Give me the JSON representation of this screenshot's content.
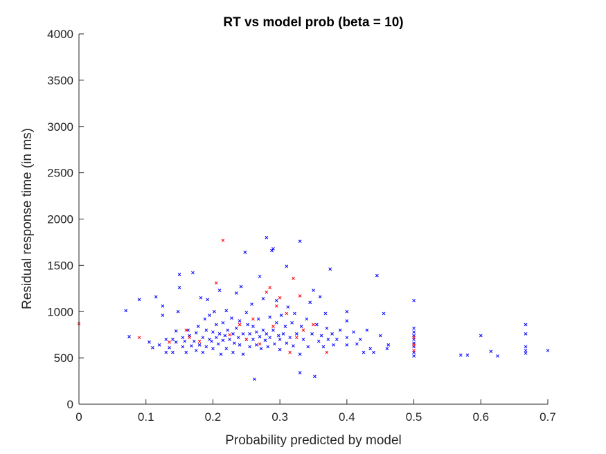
{
  "chart_data": {
    "type": "scatter",
    "title": "RT vs model prob (beta = 10)",
    "xlabel": "Probability predicted by model",
    "ylabel": "Residual response time (in ms)",
    "xlim": [
      0,
      0.7
    ],
    "ylim": [
      0,
      4000
    ],
    "xticks": [
      "0",
      "0.1",
      "0.2",
      "0.3",
      "0.4",
      "0.5",
      "0.6",
      "0.7"
    ],
    "yticks": [
      "0",
      "500",
      "1000",
      "1500",
      "2000",
      "2500",
      "3000",
      "3500",
      "4000"
    ],
    "grid": false,
    "marker": "x",
    "series": [
      {
        "color": "#0000ff",
        "points": [
          [
            0.07,
            1010
          ],
          [
            0.075,
            730
          ],
          [
            0.09,
            1130
          ],
          [
            0.105,
            670
          ],
          [
            0.11,
            610
          ],
          [
            0.115,
            1160
          ],
          [
            0.12,
            640
          ],
          [
            0.125,
            960
          ],
          [
            0.125,
            1060
          ],
          [
            0.13,
            560
          ],
          [
            0.13,
            700
          ],
          [
            0.135,
            610
          ],
          [
            0.14,
            560
          ],
          [
            0.14,
            700
          ],
          [
            0.145,
            790
          ],
          [
            0.145,
            670
          ],
          [
            0.148,
            1000
          ],
          [
            0.15,
            1400
          ],
          [
            0.15,
            1260
          ],
          [
            0.155,
            720
          ],
          [
            0.155,
            620
          ],
          [
            0.158,
            680
          ],
          [
            0.16,
            560
          ],
          [
            0.163,
            800
          ],
          [
            0.165,
            740
          ],
          [
            0.168,
            630
          ],
          [
            0.17,
            1420
          ],
          [
            0.172,
            680
          ],
          [
            0.175,
            580
          ],
          [
            0.175,
            770
          ],
          [
            0.178,
            840
          ],
          [
            0.18,
            640
          ],
          [
            0.182,
            1150
          ],
          [
            0.185,
            720
          ],
          [
            0.185,
            560
          ],
          [
            0.188,
            920
          ],
          [
            0.19,
            800
          ],
          [
            0.19,
            620
          ],
          [
            0.192,
            1130
          ],
          [
            0.195,
            960
          ],
          [
            0.195,
            700
          ],
          [
            0.198,
            680
          ],
          [
            0.2,
            780
          ],
          [
            0.2,
            600
          ],
          [
            0.202,
            1000
          ],
          [
            0.205,
            860
          ],
          [
            0.205,
            720
          ],
          [
            0.208,
            650
          ],
          [
            0.21,
            1230
          ],
          [
            0.21,
            760
          ],
          [
            0.212,
            540
          ],
          [
            0.215,
            880
          ],
          [
            0.215,
            690
          ],
          [
            0.218,
            740
          ],
          [
            0.22,
            1010
          ],
          [
            0.22,
            600
          ],
          [
            0.222,
            800
          ],
          [
            0.225,
            700
          ],
          [
            0.228,
            930
          ],
          [
            0.23,
            760
          ],
          [
            0.23,
            560
          ],
          [
            0.232,
            660
          ],
          [
            0.235,
            1200
          ],
          [
            0.235,
            820
          ],
          [
            0.238,
            720
          ],
          [
            0.24,
            640
          ],
          [
            0.24,
            900
          ],
          [
            0.242,
            1270
          ],
          [
            0.245,
            760
          ],
          [
            0.245,
            540
          ],
          [
            0.248,
            1640
          ],
          [
            0.25,
            700
          ],
          [
            0.25,
            990
          ],
          [
            0.252,
            860
          ],
          [
            0.255,
            620
          ],
          [
            0.255,
            760
          ],
          [
            0.258,
            1080
          ],
          [
            0.26,
            700
          ],
          [
            0.26,
            840
          ],
          [
            0.262,
            270
          ],
          [
            0.265,
            780
          ],
          [
            0.265,
            640
          ],
          [
            0.268,
            920
          ],
          [
            0.27,
            730
          ],
          [
            0.27,
            1380
          ],
          [
            0.272,
            600
          ],
          [
            0.275,
            800
          ],
          [
            0.275,
            1140
          ],
          [
            0.278,
            690
          ],
          [
            0.28,
            1800
          ],
          [
            0.28,
            760
          ],
          [
            0.282,
            620
          ],
          [
            0.285,
            940
          ],
          [
            0.285,
            720
          ],
          [
            0.288,
            1660
          ],
          [
            0.29,
            1680
          ],
          [
            0.29,
            800
          ],
          [
            0.292,
            650
          ],
          [
            0.295,
            880
          ],
          [
            0.295,
            1120
          ],
          [
            0.298,
            740
          ],
          [
            0.3,
            700
          ],
          [
            0.3,
            590
          ],
          [
            0.302,
            960
          ],
          [
            0.305,
            760
          ],
          [
            0.308,
            840
          ],
          [
            0.31,
            1490
          ],
          [
            0.31,
            660
          ],
          [
            0.312,
            1050
          ],
          [
            0.315,
            720
          ],
          [
            0.318,
            880
          ],
          [
            0.32,
            630
          ],
          [
            0.322,
            980
          ],
          [
            0.325,
            760
          ],
          [
            0.33,
            1760
          ],
          [
            0.33,
            540
          ],
          [
            0.33,
            340
          ],
          [
            0.332,
            840
          ],
          [
            0.335,
            700
          ],
          [
            0.34,
            920
          ],
          [
            0.342,
            620
          ],
          [
            0.345,
            1100
          ],
          [
            0.348,
            760
          ],
          [
            0.35,
            1230
          ],
          [
            0.352,
            300
          ],
          [
            0.355,
            860
          ],
          [
            0.358,
            680
          ],
          [
            0.36,
            1160
          ],
          [
            0.362,
            740
          ],
          [
            0.365,
            620
          ],
          [
            0.368,
            980
          ],
          [
            0.37,
            820
          ],
          [
            0.372,
            700
          ],
          [
            0.375,
            1460
          ],
          [
            0.378,
            760
          ],
          [
            0.38,
            640
          ],
          [
            0.385,
            700
          ],
          [
            0.39,
            800
          ],
          [
            0.4,
            1000
          ],
          [
            0.4,
            900
          ],
          [
            0.4,
            720
          ],
          [
            0.4,
            640
          ],
          [
            0.41,
            780
          ],
          [
            0.415,
            650
          ],
          [
            0.42,
            700
          ],
          [
            0.425,
            560
          ],
          [
            0.43,
            800
          ],
          [
            0.435,
            600
          ],
          [
            0.44,
            560
          ],
          [
            0.445,
            1390
          ],
          [
            0.45,
            740
          ],
          [
            0.455,
            980
          ],
          [
            0.46,
            600
          ],
          [
            0.462,
            640
          ],
          [
            0.5,
            1120
          ],
          [
            0.5,
            820
          ],
          [
            0.5,
            780
          ],
          [
            0.5,
            740
          ],
          [
            0.5,
            700
          ],
          [
            0.5,
            660
          ],
          [
            0.5,
            620
          ],
          [
            0.5,
            560
          ],
          [
            0.5,
            520
          ],
          [
            0.57,
            530
          ],
          [
            0.58,
            530
          ],
          [
            0.6,
            740
          ],
          [
            0.615,
            570
          ],
          [
            0.625,
            520
          ],
          [
            0.667,
            860
          ],
          [
            0.667,
            760
          ],
          [
            0.667,
            620
          ],
          [
            0.667,
            580
          ],
          [
            0.667,
            550
          ],
          [
            0.7,
            580
          ]
        ]
      },
      {
        "color": "#ff0000",
        "points": [
          [
            0,
            870
          ],
          [
            0.09,
            720
          ],
          [
            0.135,
            670
          ],
          [
            0.16,
            800
          ],
          [
            0.165,
            720
          ],
          [
            0.18,
            680
          ],
          [
            0.205,
            1310
          ],
          [
            0.215,
            1770
          ],
          [
            0.225,
            750
          ],
          [
            0.24,
            860
          ],
          [
            0.25,
            700
          ],
          [
            0.26,
            920
          ],
          [
            0.27,
            650
          ],
          [
            0.28,
            1210
          ],
          [
            0.285,
            1260
          ],
          [
            0.29,
            840
          ],
          [
            0.295,
            1060
          ],
          [
            0.3,
            1150
          ],
          [
            0.31,
            980
          ],
          [
            0.315,
            560
          ],
          [
            0.32,
            1360
          ],
          [
            0.325,
            720
          ],
          [
            0.33,
            1170
          ],
          [
            0.335,
            800
          ],
          [
            0.35,
            860
          ],
          [
            0.37,
            560
          ],
          [
            0.5,
            720
          ],
          [
            0.5,
            640
          ],
          [
            0.5,
            580
          ]
        ]
      }
    ]
  }
}
